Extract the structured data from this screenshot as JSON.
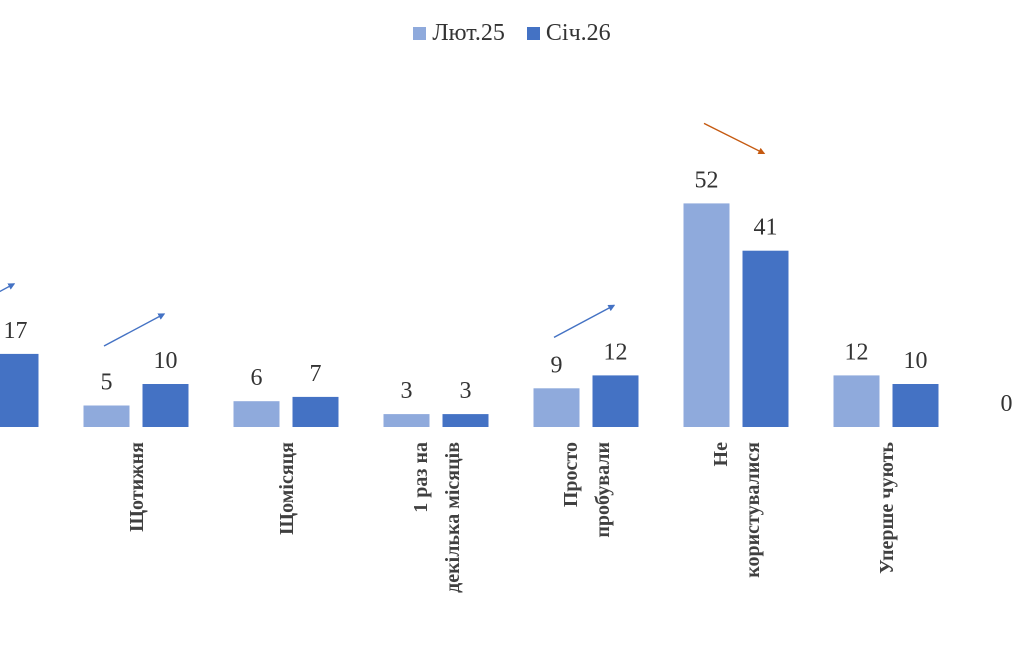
{
  "colors": {
    "series1": "#8FAADC",
    "series2": "#4472C4",
    "arrow_up": "#4472C4",
    "arrow_down": "#C55A11"
  },
  "chart_data": {
    "type": "bar",
    "legend_position": "top-center",
    "grid": false,
    "ylim": [
      0,
      60
    ],
    "categories": [
      [
        ""
      ],
      [
        "Щотижня"
      ],
      [
        "Щомісяця"
      ],
      [
        "1 раз на",
        "декілька місяців"
      ],
      [
        "Просто",
        "пробували"
      ],
      [
        "Не",
        "користувалися"
      ],
      [
        "Уперше чують"
      ],
      [
        ""
      ]
    ],
    "series": [
      {
        "name": "Лют.25",
        "values": [
          null,
          5,
          6,
          3,
          9,
          52,
          12,
          0
        ]
      },
      {
        "name": "Січ.26",
        "values": [
          17,
          10,
          7,
          3,
          12,
          41,
          10,
          null
        ]
      }
    ],
    "trend_arrows": [
      "up",
      "up",
      null,
      null,
      "up",
      "down",
      null,
      null
    ]
  }
}
